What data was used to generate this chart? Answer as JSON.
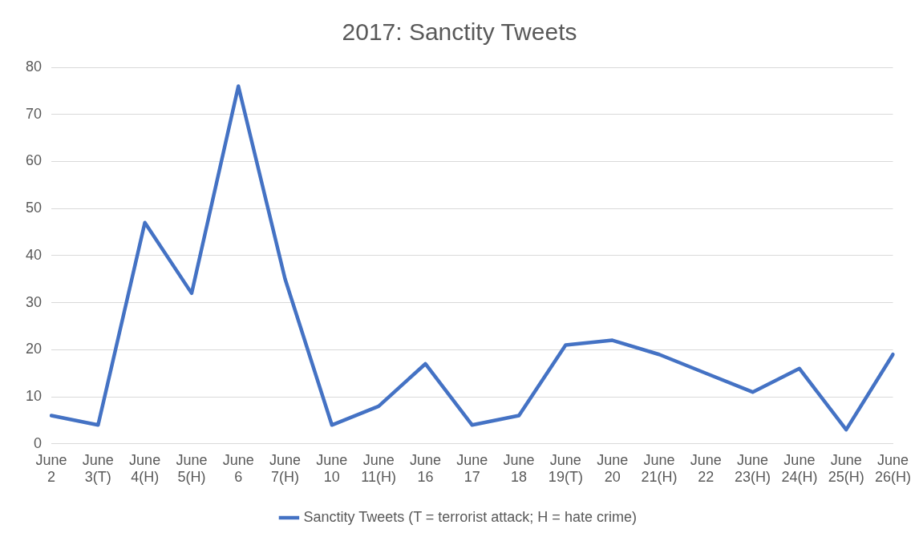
{
  "chart_data": {
    "type": "line",
    "title": "2017: Sanctity Tweets",
    "categories": [
      "June 2",
      "June 3(T)",
      "June 4(H)",
      "June 5(H)",
      "June 6",
      "June 7(H)",
      "June 10",
      "June 11(H)",
      "June 16",
      "June 17",
      "June 18",
      "June 19(T)",
      "June 20",
      "June 21(H)",
      "June 22",
      "June 23(H)",
      "June 24(H)",
      "June 25(H)",
      "June 26(H)"
    ],
    "series": [
      {
        "name": "Sanctity Tweets (T = terrorist attack; H = hate crime)",
        "color": "#4472c4",
        "values": [
          6,
          4,
          47,
          32,
          76,
          35,
          4,
          8,
          17,
          4,
          6,
          21,
          22,
          19,
          15,
          11,
          16,
          3,
          19
        ]
      }
    ],
    "ylim": [
      0,
      80
    ],
    "yticks": [
      0,
      10,
      20,
      30,
      40,
      50,
      60,
      70,
      80
    ],
    "grid": "y",
    "legend": "bottom",
    "marker": "none",
    "line_style": "solid"
  }
}
